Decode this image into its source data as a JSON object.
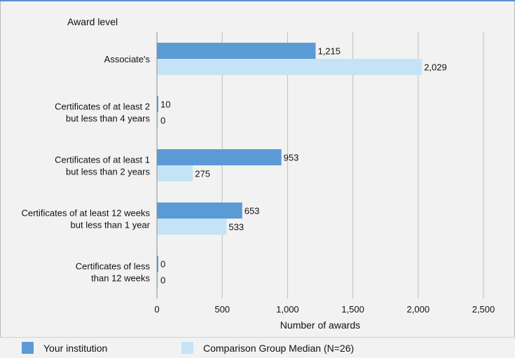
{
  "chart_data": {
    "type": "bar",
    "orientation": "horizontal",
    "y_axis_title": "Award level",
    "xlabel": "Number of awards",
    "xlim": [
      0,
      2500
    ],
    "xticks": [
      0,
      500,
      1000,
      1500,
      2000,
      2500
    ],
    "xtick_labels": [
      "0",
      "500",
      "1,000",
      "1,500",
      "2,000",
      "2,500"
    ],
    "grid": true,
    "legend_position": "bottom",
    "categories": [
      [
        "Associate's"
      ],
      [
        "Certificates of at least 2",
        "but less than 4 years"
      ],
      [
        "Certificates of at least 1",
        "but  less than 2 years"
      ],
      [
        "Certificates of at least 12 weeks",
        "but less than 1 year"
      ],
      [
        "Certificates of less",
        "than 12 weeks"
      ]
    ],
    "series": [
      {
        "name": "Your institution",
        "color": "#5b9bd5",
        "values": [
          1215,
          10,
          953,
          653,
          0
        ],
        "labels": [
          "1,215",
          "10",
          "953",
          "653",
          "0"
        ]
      },
      {
        "name": "Comparison Group Median (N=26)",
        "color": "#c5e3f7",
        "values": [
          2029,
          0,
          275,
          533,
          0
        ],
        "labels": [
          "2,029",
          "0",
          "275",
          "533",
          "0"
        ]
      }
    ]
  }
}
